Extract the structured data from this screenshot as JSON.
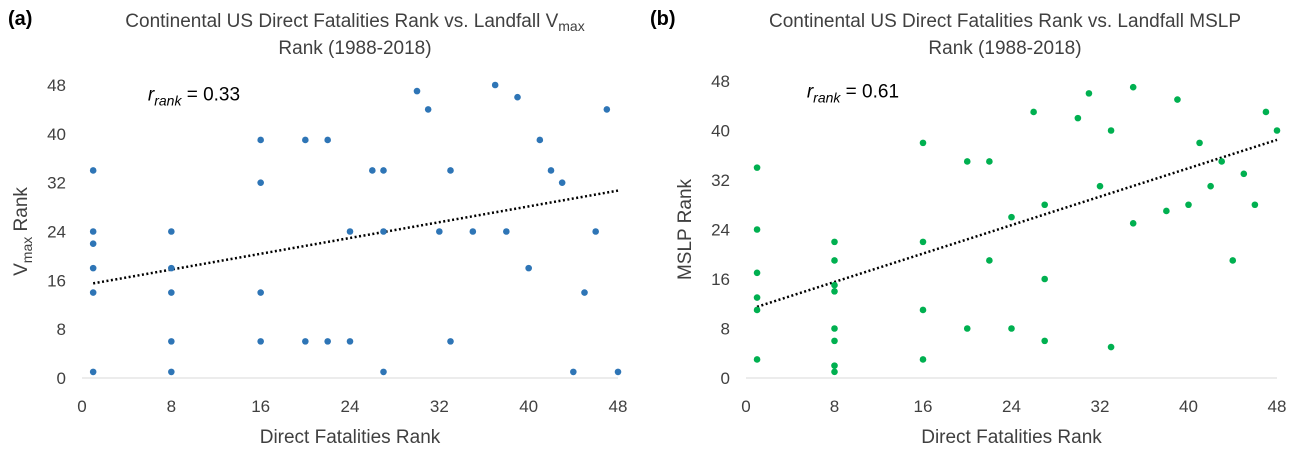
{
  "chart_data": [
    {
      "type": "scatter",
      "panel_label": "(a)",
      "title_main": "Continental US Direct Fatalities Rank vs. Landfall V",
      "title_sub": "max",
      "title_line2": "Rank (1988-2018)",
      "xlabel": "Direct Fatalities Rank",
      "ylabel_main": "V",
      "ylabel_sub": "max",
      "ylabel_tail": " Rank",
      "correlation_symbol": "r",
      "correlation_subscript": "rank",
      "correlation_value": " = 0.33",
      "xlim": [
        0,
        48
      ],
      "ylim": [
        0,
        48
      ],
      "xticks": [
        0,
        8,
        16,
        24,
        32,
        40,
        48
      ],
      "yticks": [
        0,
        8,
        16,
        24,
        32,
        40,
        48
      ],
      "point_color": "#2E75B6",
      "trendline": {
        "style": "dotted",
        "x": [
          1,
          48
        ],
        "y": [
          15.5,
          30.7
        ]
      },
      "series": [
        {
          "points": [
            [
              1,
              34
            ],
            [
              1,
              24
            ],
            [
              1,
              22
            ],
            [
              1,
              18
            ],
            [
              1,
              14
            ],
            [
              1,
              1
            ],
            [
              8,
              24
            ],
            [
              8,
              18
            ],
            [
              8,
              14
            ],
            [
              8,
              6
            ],
            [
              8,
              1
            ],
            [
              16,
              39
            ],
            [
              16,
              32
            ],
            [
              16,
              14
            ],
            [
              16,
              6
            ],
            [
              20,
              39
            ],
            [
              20,
              6
            ],
            [
              22,
              39
            ],
            [
              22,
              6
            ],
            [
              24,
              24
            ],
            [
              24,
              6
            ],
            [
              26,
              34
            ],
            [
              27,
              34
            ],
            [
              27,
              24
            ],
            [
              27,
              1
            ],
            [
              30,
              47
            ],
            [
              31,
              44
            ],
            [
              32,
              24
            ],
            [
              33,
              34
            ],
            [
              33,
              6
            ],
            [
              35,
              24
            ],
            [
              37,
              48
            ],
            [
              38,
              24
            ],
            [
              39,
              46
            ],
            [
              40,
              18
            ],
            [
              41,
              39
            ],
            [
              42,
              34
            ],
            [
              43,
              32
            ],
            [
              44,
              1
            ],
            [
              45,
              14
            ],
            [
              46,
              24
            ],
            [
              47,
              44
            ],
            [
              48,
              1
            ]
          ]
        }
      ]
    },
    {
      "type": "scatter",
      "panel_label": "(b)",
      "title_main": "Continental US Direct Fatalities Rank vs. Landfall MSLP",
      "title_sub": "",
      "title_line2": "Rank (1988-2018)",
      "xlabel": "Direct Fatalities Rank",
      "ylabel_main": "MSLP Rank",
      "ylabel_sub": "",
      "ylabel_tail": "",
      "correlation_symbol": "r",
      "correlation_subscript": "rank",
      "correlation_value": " = 0.61",
      "xlim": [
        0,
        48
      ],
      "ylim": [
        0,
        48
      ],
      "xticks": [
        0,
        8,
        16,
        24,
        32,
        40,
        48
      ],
      "yticks": [
        0,
        8,
        16,
        24,
        32,
        40,
        48
      ],
      "point_color": "#00B050",
      "trendline": {
        "style": "dotted",
        "x": [
          1,
          48
        ],
        "y": [
          11.5,
          38.5
        ]
      },
      "series": [
        {
          "points": [
            [
              1,
              34
            ],
            [
              1,
              24
            ],
            [
              1,
              17
            ],
            [
              1,
              13
            ],
            [
              1,
              11
            ],
            [
              1,
              3
            ],
            [
              8,
              22
            ],
            [
              8,
              19
            ],
            [
              8,
              15
            ],
            [
              8,
              14
            ],
            [
              8,
              8
            ],
            [
              8,
              6
            ],
            [
              8,
              2
            ],
            [
              8,
              1
            ],
            [
              16,
              38
            ],
            [
              16,
              22
            ],
            [
              16,
              11
            ],
            [
              16,
              3
            ],
            [
              20,
              35
            ],
            [
              20,
              8
            ],
            [
              22,
              35
            ],
            [
              22,
              19
            ],
            [
              24,
              26
            ],
            [
              24,
              8
            ],
            [
              26,
              43
            ],
            [
              27,
              28
            ],
            [
              27,
              16
            ],
            [
              27,
              6
            ],
            [
              30,
              42
            ],
            [
              31,
              46
            ],
            [
              32,
              31
            ],
            [
              33,
              40
            ],
            [
              33,
              5
            ],
            [
              35,
              47
            ],
            [
              35,
              25
            ],
            [
              38,
              27
            ],
            [
              39,
              45
            ],
            [
              40,
              28
            ],
            [
              41,
              38
            ],
            [
              42,
              31
            ],
            [
              43,
              35
            ],
            [
              44,
              19
            ],
            [
              45,
              33
            ],
            [
              46,
              28
            ],
            [
              47,
              43
            ],
            [
              48,
              40
            ]
          ]
        }
      ]
    }
  ]
}
